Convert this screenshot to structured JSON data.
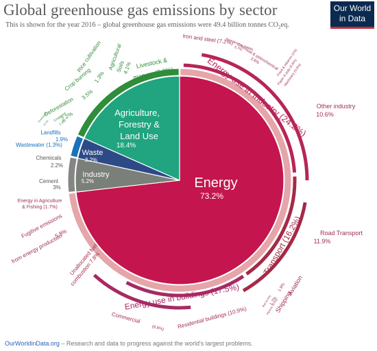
{
  "header": {
    "title": "Global greenhouse gas emissions by sector",
    "subtitle_prefix": "This is shown for the year 2016 – global greenhouse gas emissions were 49.4 billion tonnes CO",
    "subtitle_sub": "2",
    "subtitle_suffix": "eq.",
    "logo_line1": "Our World",
    "logo_line2": "in Data"
  },
  "footer": {
    "link": "OurWorldinData.org",
    "text": " – Research and data to progress against the world's largest problems."
  },
  "colors": {
    "energy": "#c4154f",
    "agriculture": "#21a480",
    "waste": "#2e4a86",
    "industry": "#7a8079",
    "industry_energy": "#b72557",
    "transport": "#a42a47",
    "buildings": "#a72a63",
    "other_energy": "#e5a5a9",
    "agri_detail": "#2f8d3b",
    "waste_detail": "#1a72b8",
    "industry_detail": "#858585"
  },
  "chart_data": {
    "type": "pie",
    "unit": "% of global greenhouse gas emissions",
    "year": "2016",
    "total": "49.4 billion tonnes CO2eq",
    "sectors": [
      {
        "name": "Energy",
        "value": 73.2,
        "label": "73.2%"
      },
      {
        "name": "Agriculture, Forestry & Land Use",
        "value": 18.4,
        "label": "18.4%"
      },
      {
        "name": "Waste",
        "value": 3.2,
        "label": "3.2%"
      },
      {
        "name": "Industry",
        "value": 5.2,
        "label": "5.2%"
      }
    ],
    "subsectors": [
      {
        "group": "energy",
        "name": "Iron and steel",
        "value": 7.2,
        "label": "(7.2%)"
      },
      {
        "group": "energy",
        "name": "Non-ferrous metals",
        "value": 0.7,
        "label": "0.7%"
      },
      {
        "group": "energy",
        "name": "Chemical & petrochemical",
        "value": 3.6,
        "label": "3.6%"
      },
      {
        "group": "energy",
        "name": "Food & tobacco",
        "value": 1.0,
        "label": "(1%)"
      },
      {
        "group": "energy",
        "name": "Paper & pulp",
        "value": 0.6,
        "label": "(0.6%)"
      },
      {
        "group": "energy",
        "name": "Machinery",
        "value": 0.5,
        "label": "(0.5%)"
      },
      {
        "group": "energy",
        "name": "Other industry",
        "value": 10.6,
        "label": "10.6%"
      },
      {
        "group": "energy",
        "name": "Road Transport",
        "value": 11.9,
        "label": "11.9%"
      },
      {
        "group": "energy",
        "name": "Aviation",
        "value": 1.9,
        "label": "1.9%"
      },
      {
        "group": "energy",
        "name": "Shipping",
        "value": 1.7,
        "label": "1.7%"
      },
      {
        "group": "energy",
        "name": "Rail",
        "value": 0.4,
        "label": "(0.4%)"
      },
      {
        "group": "energy",
        "name": "Pipeline",
        "value": 0.3,
        "label": "(0.3%)"
      },
      {
        "group": "energy",
        "name": "Residential buildings",
        "value": 10.9,
        "label": "(10.9%)"
      },
      {
        "group": "energy",
        "name": "Commercial",
        "value": 6.6,
        "label": "(6.6%)"
      },
      {
        "group": "energy",
        "name": "Unallocated fuel combustion",
        "value": 7.8,
        "label": "7.8%"
      },
      {
        "group": "energy",
        "name": "Fugitive emissions from energy production",
        "value": 5.8,
        "label": "5.8%"
      },
      {
        "group": "energy",
        "name": "Energy in Agriculture & Fishing",
        "value": 1.7,
        "label": "(1.7%)"
      },
      {
        "group": "industry",
        "name": "Cement",
        "value": 3.0,
        "label": "3%"
      },
      {
        "group": "industry",
        "name": "Chemicals",
        "value": 2.2,
        "label": "2.2%"
      },
      {
        "group": "waste",
        "name": "Wastewater",
        "value": 1.3,
        "label": "(1.3%)"
      },
      {
        "group": "waste",
        "name": "Landfills",
        "value": 1.9,
        "label": "1.9%"
      },
      {
        "group": "agriculture",
        "name": "Grassland",
        "value": 0.1,
        "label": "0.1%"
      },
      {
        "group": "agriculture",
        "name": "Cropland",
        "value": 1.4,
        "label": "1.4%"
      },
      {
        "group": "agriculture",
        "name": "Deforestation",
        "value": 2.2,
        "label": "2.2%"
      },
      {
        "group": "agriculture",
        "name": "Crop burning",
        "value": 3.5,
        "label": "3.5%"
      },
      {
        "group": "agriculture",
        "name": "Rice cultivation",
        "value": 1.3,
        "label": "1.3%"
      },
      {
        "group": "agriculture",
        "name": "Agricultural Soils",
        "value": 4.1,
        "label": "4.1%"
      },
      {
        "group": "agriculture",
        "name": "Livestock & manure",
        "value": 5.8,
        "label": "(5.8%)"
      }
    ],
    "groups": [
      {
        "name": "Energy use in Industry",
        "value": 24.2,
        "label": "(24.2%)"
      },
      {
        "name": "Transport",
        "value": 16.2,
        "label": "(16.2%)"
      },
      {
        "name": "Energy use in buildings",
        "value": 17.5,
        "label": "(17.5%)"
      }
    ]
  }
}
